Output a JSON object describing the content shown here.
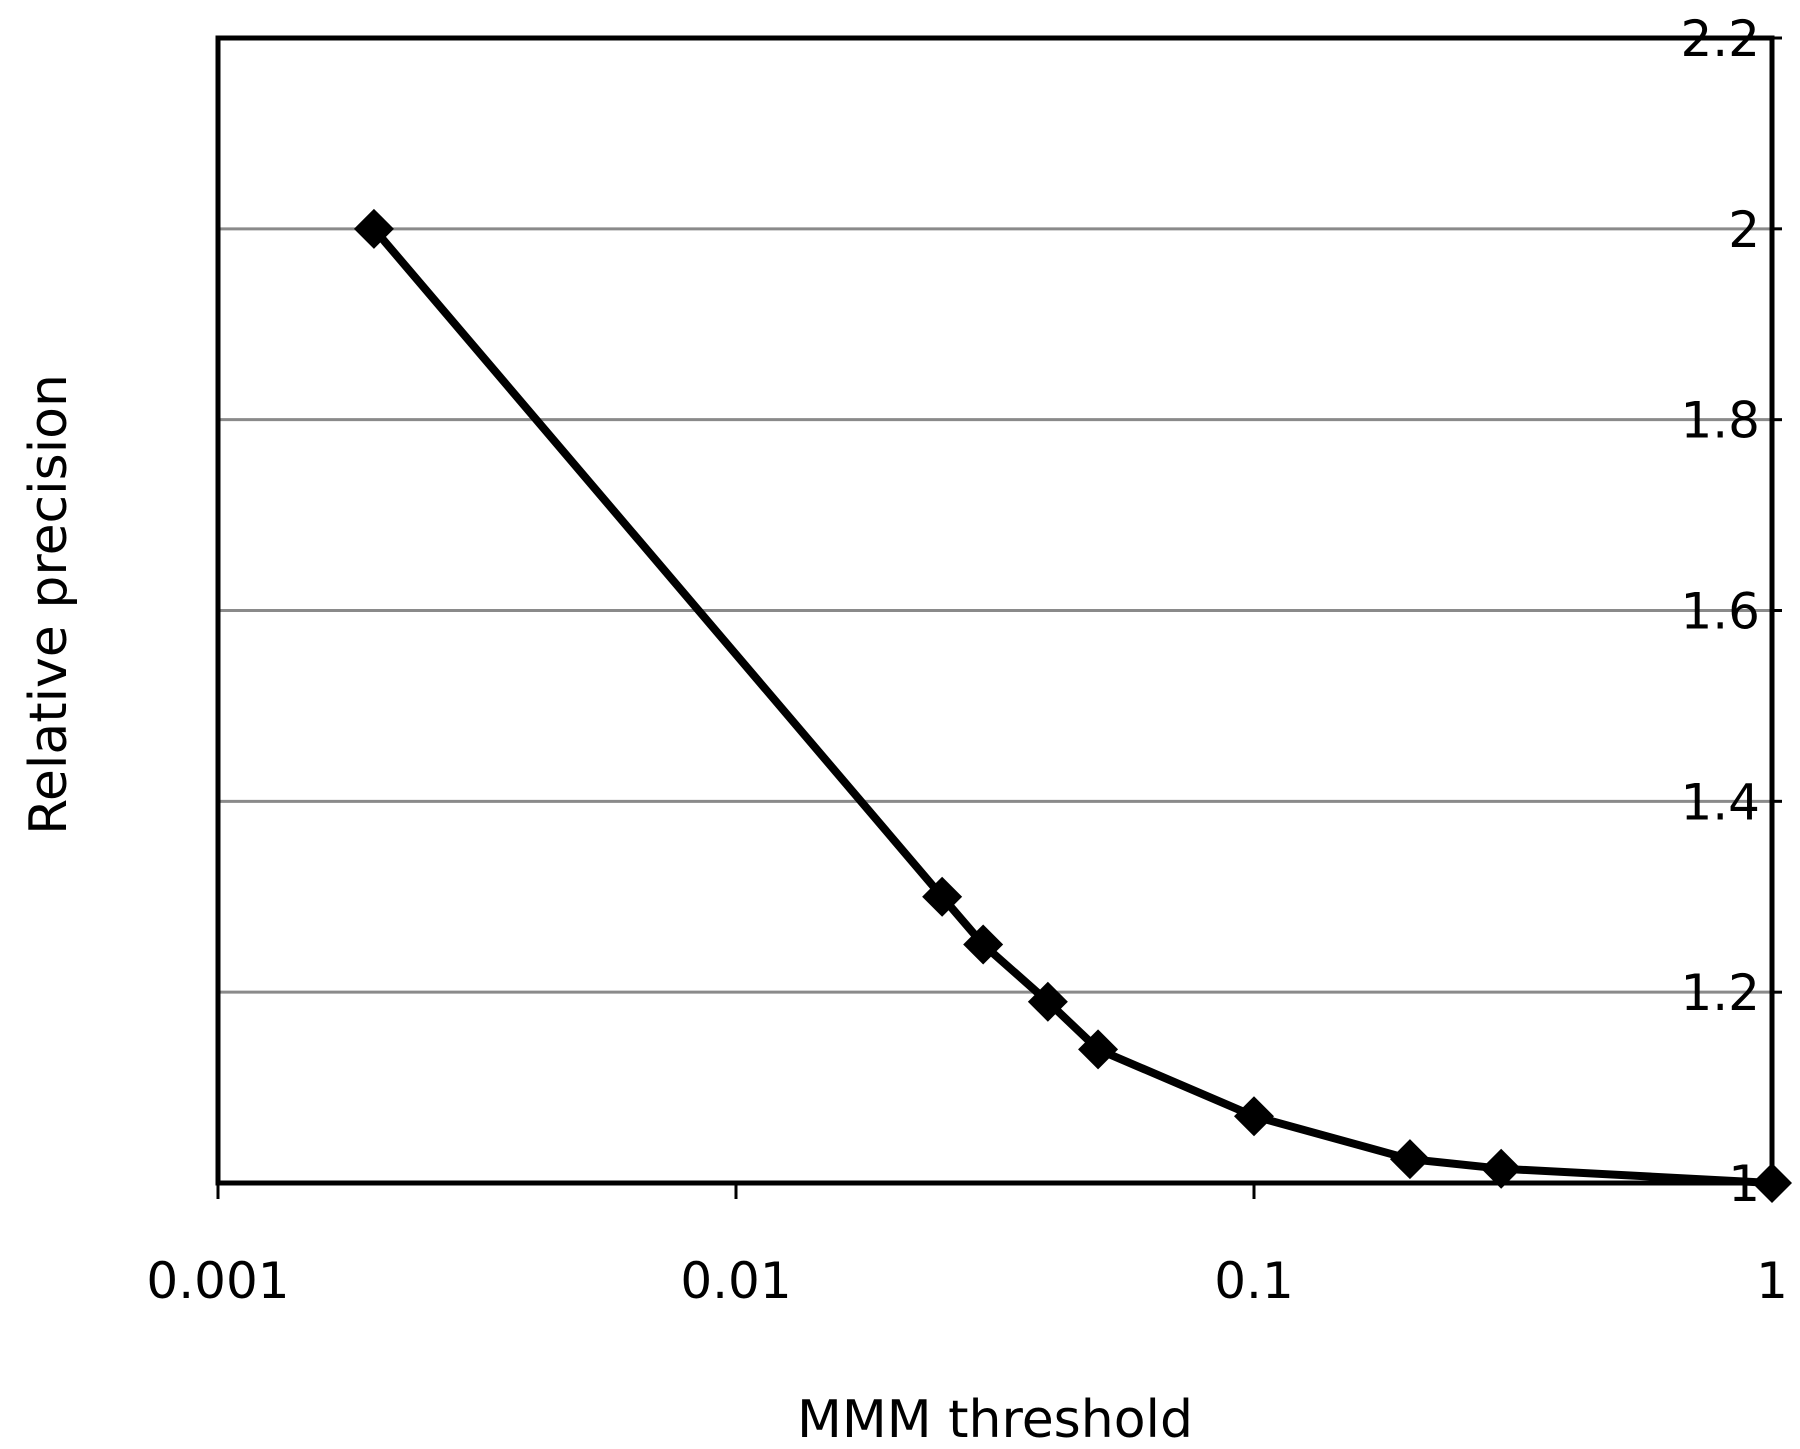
{
  "chart_data": {
    "type": "line",
    "title": "",
    "xlabel": "MMM threshold",
    "ylabel": "Relative precision",
    "x_scale": "log",
    "xlim": [
      0.001,
      1
    ],
    "ylim": [
      1,
      2.2
    ],
    "x_ticks": [
      {
        "value": 0.001,
        "label": "0.001"
      },
      {
        "value": 0.01,
        "label": "0.01"
      },
      {
        "value": 0.1,
        "label": "0.1"
      },
      {
        "value": 1,
        "label": "1"
      }
    ],
    "y_ticks": [
      {
        "value": 1,
        "label": "1"
      },
      {
        "value": 1.2,
        "label": "1.2"
      },
      {
        "value": 1.4,
        "label": "1.4"
      },
      {
        "value": 1.6,
        "label": "1.6"
      },
      {
        "value": 1.8,
        "label": "1.8"
      },
      {
        "value": 2,
        "label": "2"
      },
      {
        "value": 2.2,
        "label": "2.2"
      }
    ],
    "y_axis_side": "right",
    "grid": "horizontal",
    "legend": "none",
    "series": [
      {
        "marker": "diamond",
        "color": "#000000",
        "x": [
          0.002,
          0.025,
          0.03,
          0.04,
          0.05,
          0.1,
          0.2,
          0.3,
          1
        ],
        "y": [
          2.0,
          1.3,
          1.25,
          1.19,
          1.14,
          1.07,
          1.025,
          1.015,
          1.0
        ]
      }
    ]
  }
}
